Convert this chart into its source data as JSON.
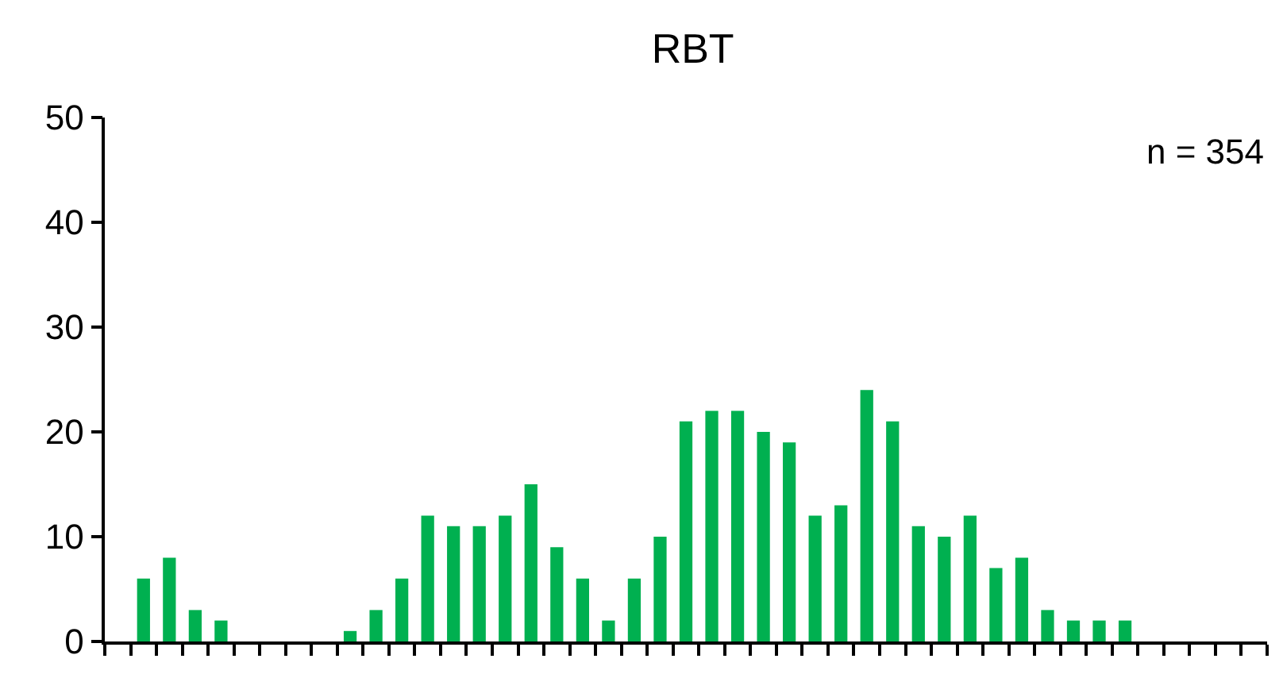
{
  "chart_data": {
    "type": "bar",
    "title": "RBT",
    "categories": [
      null,
      null,
      null,
      null,
      null,
      null,
      null,
      null,
      null,
      null,
      null,
      null,
      null,
      null,
      null,
      null,
      null,
      null,
      null,
      null,
      null,
      null,
      null,
      null,
      null,
      null,
      null,
      null,
      null,
      null,
      null,
      null,
      null,
      null,
      null,
      null,
      null,
      null,
      null,
      null,
      null,
      null,
      null,
      null,
      null
    ],
    "values": [
      0,
      6,
      8,
      3,
      2,
      0,
      0,
      0,
      0,
      1,
      3,
      6,
      12,
      11,
      11,
      12,
      15,
      9,
      6,
      2,
      6,
      10,
      21,
      22,
      22,
      20,
      19,
      12,
      13,
      24,
      21,
      11,
      10,
      12,
      7,
      8,
      3,
      2,
      2,
      2,
      0,
      0,
      0,
      0,
      0
    ],
    "color": "#00b050",
    "ylim": [
      0,
      50
    ],
    "yticks": [
      0,
      10,
      20,
      30,
      40,
      50
    ],
    "annotations": [
      "n = 354"
    ]
  }
}
